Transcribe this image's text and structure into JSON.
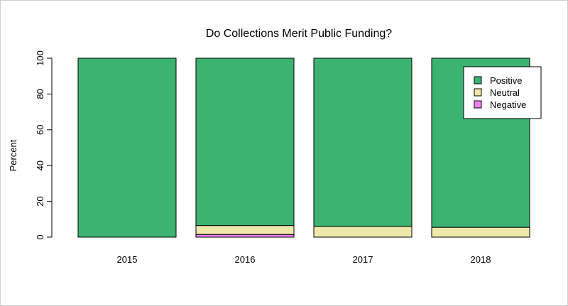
{
  "chart_data": {
    "type": "bar",
    "stacked": true,
    "title": "Do Collections Merit Public Funding?",
    "xlabel": "",
    "ylabel": "Percent",
    "ylim": [
      0,
      100
    ],
    "yticks": [
      "0",
      "20",
      "40",
      "60",
      "80",
      "100"
    ],
    "categories": [
      "2015",
      "2016",
      "2017",
      "2018"
    ],
    "series": [
      {
        "name": "Negative",
        "color": "#ee82ee",
        "values": [
          0,
          1.5,
          0,
          0
        ]
      },
      {
        "name": "Neutral",
        "color": "#eee8aa",
        "values": [
          0,
          5,
          6,
          5.5
        ]
      },
      {
        "name": "Positive",
        "color": "#3cb371",
        "values": [
          100,
          93.5,
          94,
          94.5
        ]
      }
    ],
    "legend": {
      "placement": "top-right",
      "entries": [
        "Positive",
        "Neutral",
        "Negative"
      ]
    }
  }
}
